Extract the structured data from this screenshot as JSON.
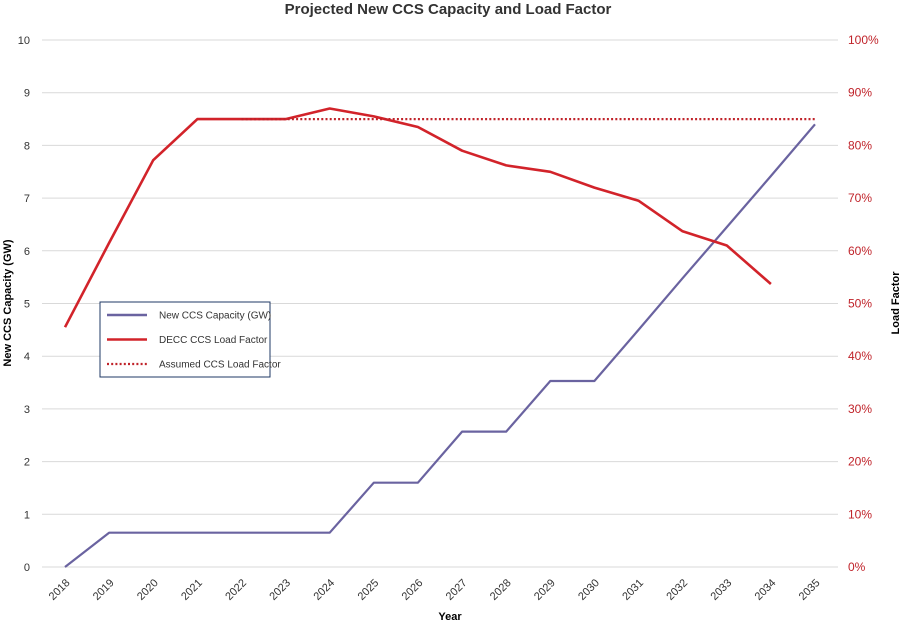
{
  "chart_data": {
    "type": "line",
    "title": "Projected New CCS Capacity and Load Factor",
    "xlabel": "Year",
    "ylabel": "New CCS Capacity (GW)",
    "y2label": "Load Factor",
    "categories": [
      "2018",
      "2019",
      "2020",
      "2021",
      "2022",
      "2023",
      "2024",
      "2025",
      "2026",
      "2027",
      "2028",
      "2029",
      "2030",
      "2031",
      "2032",
      "2033",
      "2034",
      "2035"
    ],
    "ylim": [
      0,
      10
    ],
    "yticks": [
      "0",
      "1",
      "2",
      "3",
      "4",
      "5",
      "6",
      "7",
      "8",
      "9",
      "10"
    ],
    "y2lim": [
      0,
      1
    ],
    "y2ticks": [
      "0%",
      "10%",
      "20%",
      "30%",
      "40%",
      "50%",
      "60%",
      "70%",
      "80%",
      "90%",
      "100%"
    ],
    "grid": true,
    "legend_position": "middle-left",
    "series": [
      {
        "name": "New CCS Capacity (GW)",
        "axis": "left",
        "style": "solid",
        "color": "#6a63a0",
        "values": [
          0,
          0.65,
          0.65,
          0.65,
          0.65,
          0.65,
          0.65,
          1.6,
          1.6,
          2.57,
          2.57,
          3.53,
          3.53,
          4.5,
          5.48,
          6.45,
          7.42,
          8.4
        ]
      },
      {
        "name": "DECC CCS Load Factor",
        "axis": "right",
        "style": "solid",
        "color": "#d2232a",
        "values": [
          0.455,
          0.615,
          0.772,
          0.85,
          0.85,
          0.85,
          0.87,
          0.855,
          0.835,
          0.79,
          0.762,
          0.75,
          0.72,
          0.695,
          0.637,
          0.61,
          0.537,
          null
        ]
      },
      {
        "name": "Assumed CCS Load Factor",
        "axis": "right",
        "style": "dotted",
        "color": "#c0232a",
        "values": [
          null,
          null,
          null,
          null,
          0.85,
          0.85,
          0.85,
          0.85,
          0.85,
          0.85,
          0.85,
          0.85,
          0.85,
          0.85,
          0.85,
          0.85,
          0.85,
          0.85
        ]
      }
    ],
    "colors": {
      "grid": "#d9d9d9",
      "right_axis_text": "#c0232a",
      "legend_border": "#1f3864"
    }
  }
}
